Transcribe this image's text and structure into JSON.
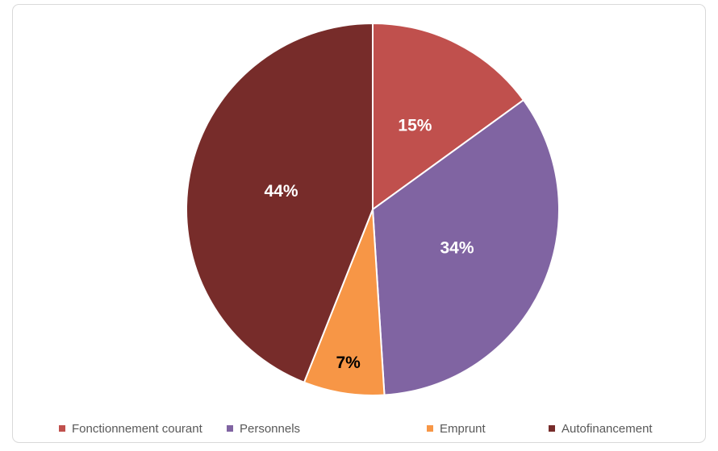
{
  "chart_data": {
    "type": "pie",
    "categories": [
      "Fonctionnement courant",
      "Personnels",
      "Emprunt",
      "Autofinancement"
    ],
    "values": [
      15,
      34,
      7,
      44
    ],
    "value_labels": [
      "15%",
      "34%",
      "7%",
      "44%"
    ],
    "colors": [
      "#c0504d",
      "#8064a2",
      "#f79646",
      "#772c2a"
    ],
    "legend": "bottom"
  }
}
